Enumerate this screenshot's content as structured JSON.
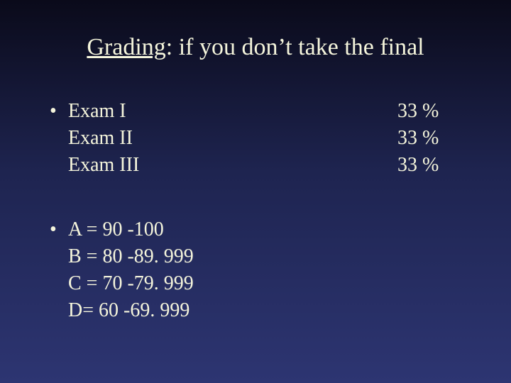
{
  "colors": {
    "text": "#f5f5dc",
    "bg_top": "#0a0a1a",
    "bg_bottom": "#2d3572"
  },
  "title": {
    "underlined_word": "Grading",
    "rest": ": if you don’t take the final",
    "fontsize_pt": 34
  },
  "body_fontsize_pt": 28,
  "exam_weights": {
    "items": [
      {
        "label": "Exam I",
        "value": "33 %"
      },
      {
        "label": "Exam II",
        "value": "33 %"
      },
      {
        "label": "Exam III",
        "value": "33 %"
      }
    ]
  },
  "grade_scale": {
    "items": [
      {
        "text": "A = 90 -100"
      },
      {
        "text": "B = 80 -89. 999"
      },
      {
        "text": "C = 70 -79. 999"
      },
      {
        "text": "D= 60 -69. 999"
      }
    ]
  },
  "bullet_char": "•"
}
